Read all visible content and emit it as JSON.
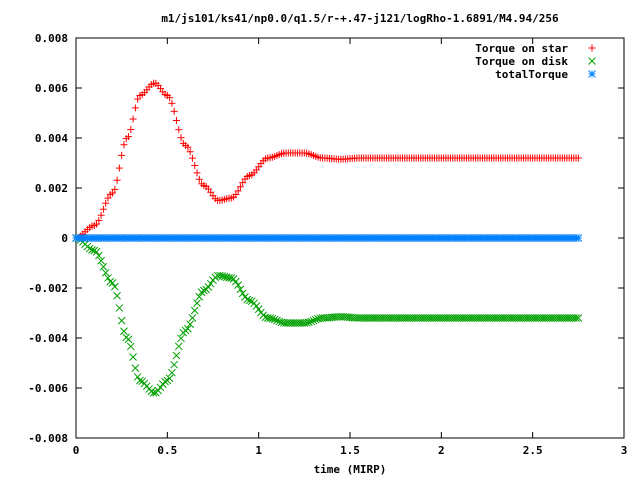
{
  "chart_data": {
    "type": "scatter",
    "title": "m1/js101/ks41/np0.0/q1.5/r-+.47-j121/logRho-1.6891/M4.94/256",
    "xlabel": "time (MIRP)",
    "ylabel": "",
    "xlim": [
      0,
      3
    ],
    "ylim": [
      -0.008,
      0.008
    ],
    "xticks": [
      0,
      0.5,
      1,
      1.5,
      2,
      2.5,
      3
    ],
    "xtick_labels": [
      "0",
      "0.5",
      "1",
      "1.5",
      "2",
      "2.5",
      "3"
    ],
    "yticks": [
      -0.008,
      -0.006,
      -0.004,
      -0.002,
      0,
      0.002,
      0.004,
      0.006,
      0.008
    ],
    "ytick_labels": [
      "-0.008",
      "-0.006",
      "-0.004",
      "-0.002",
      "0",
      "0.002",
      "0.004",
      "0.006",
      "0.008"
    ],
    "grid": false,
    "legend_position": "top-right",
    "x_range": [
      0,
      2.75
    ],
    "x_step": 0.0125,
    "series": [
      {
        "name": "Torque on star",
        "marker": "plus",
        "color": "#ff0000",
        "points": [
          [
            0,
            0
          ],
          [
            0.1,
            0.0005
          ],
          [
            0.2,
            0.0018
          ],
          [
            0.28,
            0.004
          ],
          [
            0.35,
            0.0057
          ],
          [
            0.43,
            0.0062
          ],
          [
            0.5,
            0.0057
          ],
          [
            0.6,
            0.0037
          ],
          [
            0.7,
            0.0021
          ],
          [
            0.78,
            0.0015
          ],
          [
            0.85,
            0.0016
          ],
          [
            0.95,
            0.0025
          ],
          [
            1.05,
            0.0032
          ],
          [
            1.15,
            0.0034
          ],
          [
            1.25,
            0.0034
          ],
          [
            1.35,
            0.0032
          ],
          [
            1.45,
            0.00315
          ],
          [
            1.55,
            0.0032
          ],
          [
            1.7,
            0.0032
          ],
          [
            2.0,
            0.0032
          ],
          [
            2.75,
            0.0032
          ]
        ]
      },
      {
        "name": "Torque on disk",
        "marker": "cross",
        "color": "#00a000",
        "points": [
          [
            0,
            0
          ],
          [
            0.1,
            -0.0005
          ],
          [
            0.2,
            -0.0018
          ],
          [
            0.28,
            -0.004
          ],
          [
            0.35,
            -0.0057
          ],
          [
            0.43,
            -0.0062
          ],
          [
            0.5,
            -0.0057
          ],
          [
            0.6,
            -0.0037
          ],
          [
            0.7,
            -0.0021
          ],
          [
            0.78,
            -0.0015
          ],
          [
            0.85,
            -0.0016
          ],
          [
            0.95,
            -0.0025
          ],
          [
            1.05,
            -0.0032
          ],
          [
            1.15,
            -0.0034
          ],
          [
            1.25,
            -0.0034
          ],
          [
            1.35,
            -0.0032
          ],
          [
            1.45,
            -0.00315
          ],
          [
            1.55,
            -0.0032
          ],
          [
            1.7,
            -0.0032
          ],
          [
            2.0,
            -0.0032
          ],
          [
            2.75,
            -0.0032
          ]
        ]
      },
      {
        "name": "totalTorque",
        "marker": "star",
        "color": "#0080ff",
        "points": [
          [
            0,
            0
          ],
          [
            2.75,
            0
          ]
        ]
      }
    ]
  }
}
